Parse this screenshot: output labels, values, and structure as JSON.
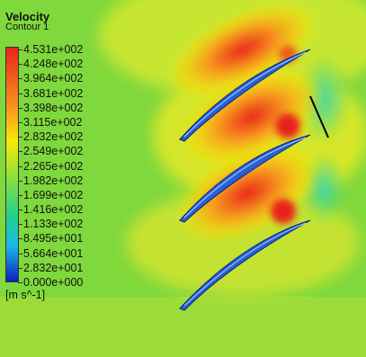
{
  "legend": {
    "title": "Velocity",
    "subtitle": "Contour 1",
    "units": "[m s^-1]",
    "ticks": [
      "4.531e+002",
      "4.248e+002",
      "3.964e+002",
      "3.681e+002",
      "3.398e+002",
      "3.115e+002",
      "2.832e+002",
      "2.549e+002",
      "2.265e+002",
      "1.982e+002",
      "1.699e+002",
      "1.416e+002",
      "1.133e+002",
      "8.495e+001",
      "5.664e+001",
      "2.832e+001",
      "0.000e+000"
    ],
    "range": [
      0,
      453.1
    ]
  },
  "colors": {
    "max": "#e8241a",
    "high": "#f7941d",
    "upper_mid": "#f9e70a",
    "mid": "#8fe03a",
    "lower_mid": "#22d28a",
    "low": "#1ab6e8",
    "min": "#0b1fbf",
    "blade": "#2b5fd6"
  }
}
